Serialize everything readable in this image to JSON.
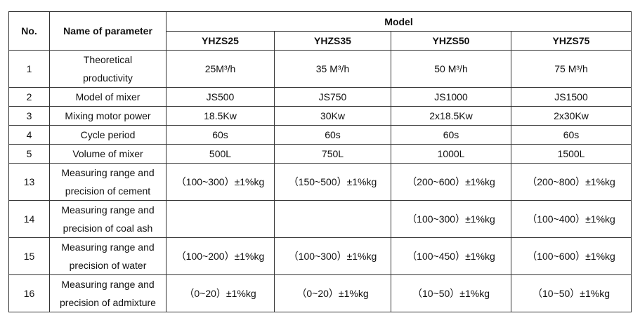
{
  "table": {
    "header": {
      "no": "No.",
      "name": "Name of parameter",
      "model": "Model",
      "models": [
        "YHZS25",
        "YHZS35",
        "YHZS50",
        "YHZS75"
      ]
    },
    "rows": [
      [
        "1",
        "Theoretical productivity",
        "25M³/h",
        "35 M³/h",
        "50 M³/h",
        "75 M³/h"
      ],
      [
        "2",
        "Model of mixer",
        "JS500",
        "JS750",
        "JS1000",
        "JS1500"
      ],
      [
        "3",
        "Mixing motor power",
        "18.5Kw",
        "30Kw",
        "2x18.5Kw",
        "2x30Kw"
      ],
      [
        "4",
        "Cycle period",
        "60s",
        "60s",
        "60s",
        "60s"
      ],
      [
        "5",
        "Volume of mixer",
        "500L",
        "750L",
        "1000L",
        "1500L"
      ],
      [
        "13",
        "Measuring range and precision of cement",
        "（100~300）±1%kg",
        "（150~500）±1%kg",
        "（200~600）±1%kg",
        "（200~800）±1%kg"
      ],
      [
        "14",
        "Measuring range and precision of coal ash",
        null,
        null,
        "（100~300）±1%kg",
        "（100~400）±1%kg"
      ],
      [
        "15",
        "Measuring range and precision of water",
        "（100~200）±1%kg",
        "（100~300）±1%kg",
        "（100~450）±1%kg",
        "（100~600）±1%kg"
      ],
      [
        "16",
        "Measuring range and precision of admixture",
        "（0~20）±1%kg",
        "（0~20）±1%kg",
        "（10~50）±1%kg",
        "（10~50）±1%kg"
      ]
    ]
  }
}
